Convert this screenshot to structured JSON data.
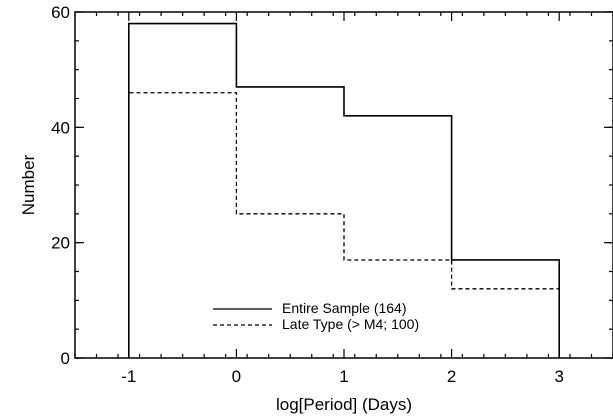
{
  "chart_data": {
    "type": "histogram",
    "xlabel": "log[Period] (Days)",
    "ylabel": "Number",
    "xlim": [
      -1.5,
      3.5
    ],
    "ylim": [
      0,
      60
    ],
    "x_ticks": [
      -1,
      0,
      1,
      2,
      3
    ],
    "x_tick_labels": [
      "-1",
      "0",
      "1",
      "2",
      "3"
    ],
    "y_ticks": [
      0,
      20,
      40,
      60
    ],
    "y_tick_labels": [
      "0",
      "20",
      "40",
      "60"
    ],
    "x_minor_step": 0.2,
    "y_minor_step": 5,
    "bin_edges": [
      -1,
      0,
      1,
      2,
      3
    ],
    "series": [
      {
        "name": "Entire Sample (164)",
        "values": [
          58,
          47,
          42,
          17
        ],
        "line_style": "solid",
        "color": "#000000"
      },
      {
        "name": "Late Type (> M4; 100)",
        "values": [
          46,
          25,
          17,
          12
        ],
        "line_style": "dashed",
        "color": "#000000"
      }
    ],
    "legend_position": "bottom-center",
    "grid": false
  }
}
